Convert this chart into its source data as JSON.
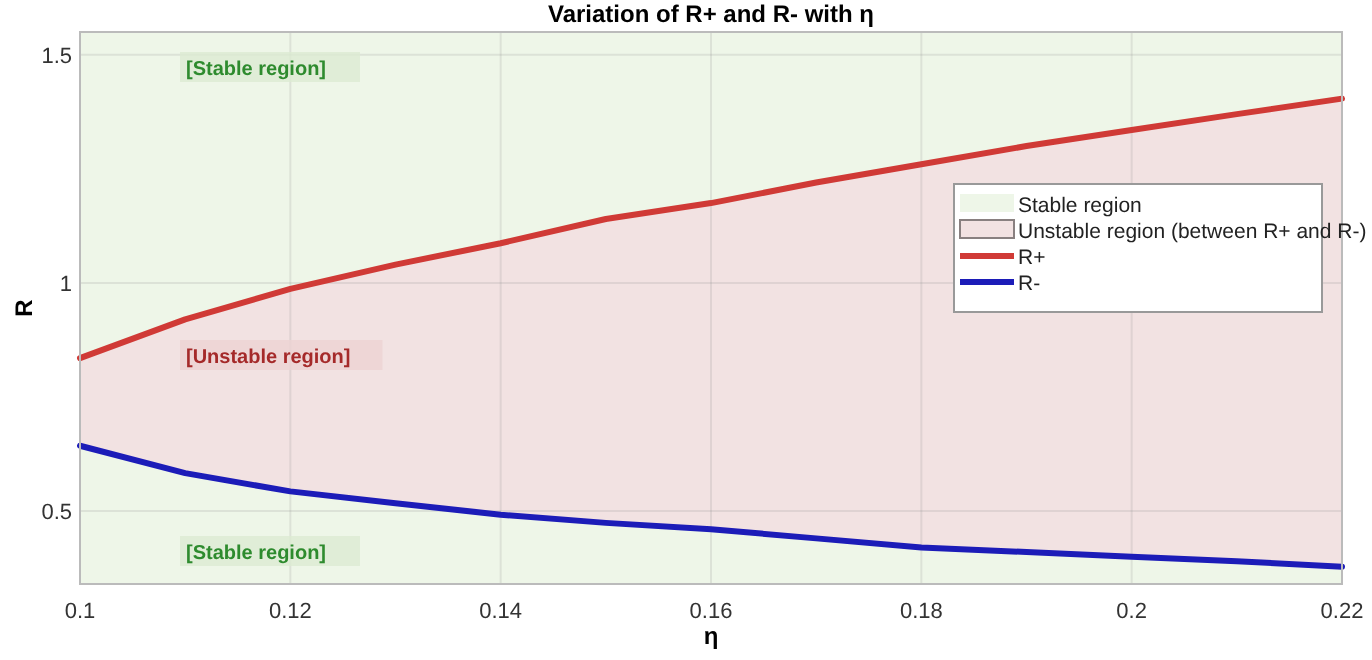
{
  "chart_data": {
    "type": "line",
    "title": "Variation of R+ and R- with η",
    "xlabel": "η",
    "ylabel": "R",
    "x": [
      0.1,
      0.11,
      0.12,
      0.13,
      0.14,
      0.15,
      0.16,
      0.17,
      0.18,
      0.19,
      0.2,
      0.21,
      0.22
    ],
    "series": [
      {
        "name": "R+",
        "color": "#d03a36",
        "values": [
          0.835,
          0.92,
          0.987,
          1.04,
          1.087,
          1.14,
          1.175,
          1.22,
          1.26,
          1.3,
          1.335,
          1.37,
          1.404
        ]
      },
      {
        "name": "R-",
        "color": "#1c1cb8",
        "values": [
          0.643,
          0.583,
          0.543,
          0.517,
          0.492,
          0.474,
          0.46,
          0.44,
          0.42,
          0.41,
          0.4,
          0.39,
          0.378
        ]
      },
      {
        "type": "area",
        "name": "Unstable region (between R+ and R-)",
        "color": "#f2e2e2",
        "values": [
          null,
          null,
          null,
          null,
          null,
          null,
          null,
          null,
          null,
          null,
          null,
          null,
          null
        ],
        "upper": [
          0.835,
          0.92,
          0.987,
          1.04,
          1.087,
          1.14,
          1.175,
          1.22,
          1.26,
          1.3,
          1.335,
          1.37,
          1.404
        ],
        "lower": [
          0.643,
          0.583,
          0.543,
          0.517,
          0.492,
          0.474,
          0.46,
          0.44,
          0.42,
          0.41,
          0.4,
          0.39,
          0.378
        ]
      }
    ],
    "bands": [
      {
        "axis": "y",
        "from": 0.34,
        "to": 1.55,
        "label": "Stable region",
        "color": "#eef6e8"
      }
    ],
    "annotations": [
      "[Stable region]",
      "[Unstable region]",
      "[Stable region]"
    ],
    "xlim": [
      0.1,
      0.22
    ],
    "xticks": [
      0.1,
      0.12,
      0.14,
      0.16,
      0.18,
      0.2,
      0.22
    ],
    "ylim": [
      0.34,
      1.55
    ],
    "yticks": [
      0.5,
      1,
      1.5
    ],
    "grid": true,
    "legend": "right",
    "line_style": "solid",
    "marker": "none"
  }
}
